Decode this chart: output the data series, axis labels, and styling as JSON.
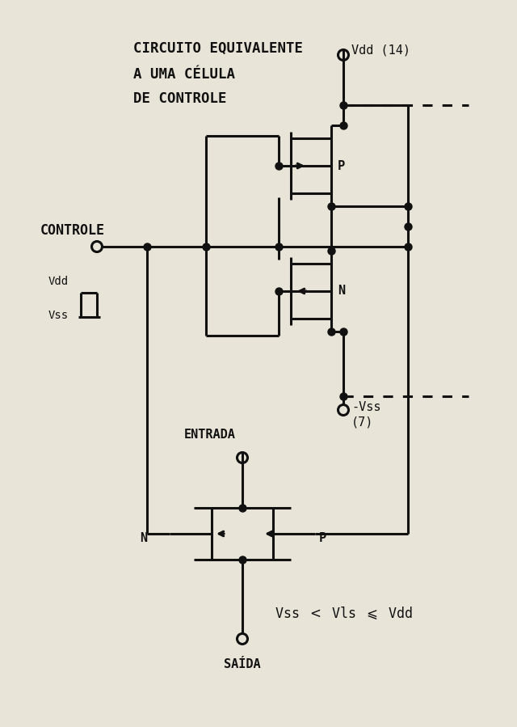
{
  "background_color": "#e8e4d8",
  "line_color": "#111111",
  "line_width": 2.2,
  "dot_size": 6.5,
  "figsize": [
    6.4,
    8.99
  ],
  "dpi": 100,
  "title_line1": "CIRCUITO EQUIVALENTE",
  "title_line2": "A UMA CÉLULA",
  "title_line3": "DE CONTROLE",
  "label_vdd": "Vdd (14)",
  "label_vss": "-Vss",
  "label_vss2": "(7)",
  "label_controle": "CONTROLE",
  "label_entrada": "ENTRADA",
  "label_saida": "SAÍDA",
  "label_P_top": "P",
  "label_N_top": "N",
  "label_N_bot": "N",
  "label_P_bot": "P",
  "label_Vdd_sig": "Vdd",
  "label_Vss_sig": "Vss",
  "label_eq": "Vss < Vls ≤ Vdd"
}
